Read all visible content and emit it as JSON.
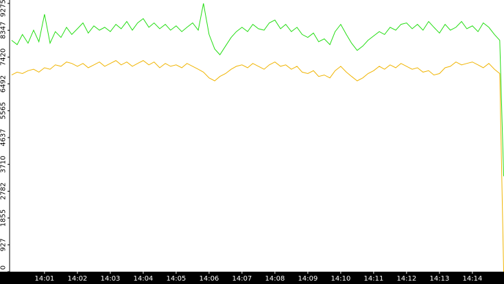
{
  "chart_data": {
    "type": "line",
    "x": [
      0,
      0.17,
      0.33,
      0.5,
      0.67,
      0.83,
      1,
      1.17,
      1.33,
      1.5,
      1.67,
      1.83,
      2,
      2.17,
      2.33,
      2.5,
      2.67,
      2.83,
      3,
      3.17,
      3.33,
      3.5,
      3.67,
      3.83,
      4,
      4.17,
      4.33,
      4.5,
      4.67,
      4.83,
      5,
      5.17,
      5.33,
      5.5,
      5.67,
      5.83,
      6,
      6.17,
      6.33,
      6.5,
      6.67,
      6.83,
      7,
      7.17,
      7.33,
      7.5,
      7.67,
      7.83,
      8,
      8.17,
      8.33,
      8.5,
      8.67,
      8.83,
      9,
      9.17,
      9.33,
      9.5,
      9.67,
      9.83,
      10,
      10.17,
      10.33,
      10.5,
      10.67,
      10.83,
      11,
      11.17,
      11.33,
      11.5,
      11.67,
      11.83,
      12,
      12.17,
      12.33,
      12.5,
      12.67,
      12.83,
      13,
      13.17,
      13.33,
      13.5,
      13.67,
      13.83,
      14,
      14.17,
      14.33,
      14.5,
      14.67,
      14.83,
      14.95
    ],
    "series": [
      {
        "color": "#22dd11",
        "values": [
          8000,
          7850,
          8200,
          7900,
          8350,
          7950,
          8900,
          7900,
          8300,
          8100,
          8450,
          8200,
          8400,
          8600,
          8250,
          8500,
          8350,
          8450,
          8300,
          8550,
          8400,
          8650,
          8350,
          8600,
          8750,
          8450,
          8600,
          8400,
          8550,
          8350,
          8500,
          8300,
          8450,
          8600,
          8350,
          9275,
          8200,
          7700,
          7500,
          7800,
          8100,
          8300,
          8450,
          8300,
          8550,
          8400,
          8350,
          8600,
          8700,
          8400,
          8550,
          8300,
          8450,
          8200,
          8100,
          8250,
          7950,
          8050,
          7850,
          8300,
          8550,
          8200,
          7900,
          7650,
          7800,
          8000,
          8150,
          8300,
          8200,
          8450,
          8350,
          8550,
          8600,
          8400,
          8550,
          8350,
          8650,
          8450,
          8250,
          8550,
          8350,
          8450,
          8650,
          8400,
          8500,
          8300,
          8600,
          8450,
          8200,
          8000,
          3300
        ]
      },
      {
        "color": "#f0b400",
        "values": [
          6800,
          6900,
          6850,
          6950,
          7000,
          6900,
          7050,
          7000,
          7150,
          7100,
          7250,
          7200,
          7100,
          7200,
          7050,
          7150,
          7250,
          7100,
          7200,
          7300,
          7150,
          7250,
          7100,
          7200,
          7300,
          7150,
          7250,
          7050,
          7200,
          7100,
          7150,
          7050,
          7200,
          7100,
          7000,
          6900,
          6700,
          6600,
          6750,
          6850,
          7000,
          7100,
          7150,
          7050,
          7200,
          7100,
          7000,
          7150,
          7250,
          7100,
          7150,
          7000,
          7100,
          6900,
          6850,
          6950,
          6750,
          6800,
          6700,
          6950,
          7100,
          6900,
          6750,
          6600,
          6700,
          6850,
          6950,
          7100,
          7000,
          7150,
          7050,
          7200,
          7100,
          7000,
          7050,
          6900,
          6950,
          6800,
          6850,
          7050,
          7100,
          7250,
          7150,
          7200,
          7250,
          7150,
          7050,
          7200,
          7000,
          6850,
          0
        ]
      }
    ],
    "xlim": [
      -0.06,
      14.96
    ],
    "xticks": [
      {
        "value": 1,
        "label": "14:01"
      },
      {
        "value": 2,
        "label": "14:02"
      },
      {
        "value": 3,
        "label": "14:03"
      },
      {
        "value": 4,
        "label": "14:04"
      },
      {
        "value": 5,
        "label": "14:05"
      },
      {
        "value": 6,
        "label": "14:06"
      },
      {
        "value": 7,
        "label": "14:07"
      },
      {
        "value": 8,
        "label": "14:08"
      },
      {
        "value": 9,
        "label": "14:09"
      },
      {
        "value": 10,
        "label": "14:10"
      },
      {
        "value": 11,
        "label": "14:11"
      },
      {
        "value": 12,
        "label": "14:12"
      },
      {
        "value": 13,
        "label": "14:13"
      },
      {
        "value": 14,
        "label": "14:14"
      }
    ],
    "ylim": [
      0,
      9275
    ],
    "yticks": [
      0,
      927,
      1855,
      2782,
      3710,
      4637,
      5565,
      6492,
      7420,
      8347,
      9275
    ],
    "grid": false
  }
}
